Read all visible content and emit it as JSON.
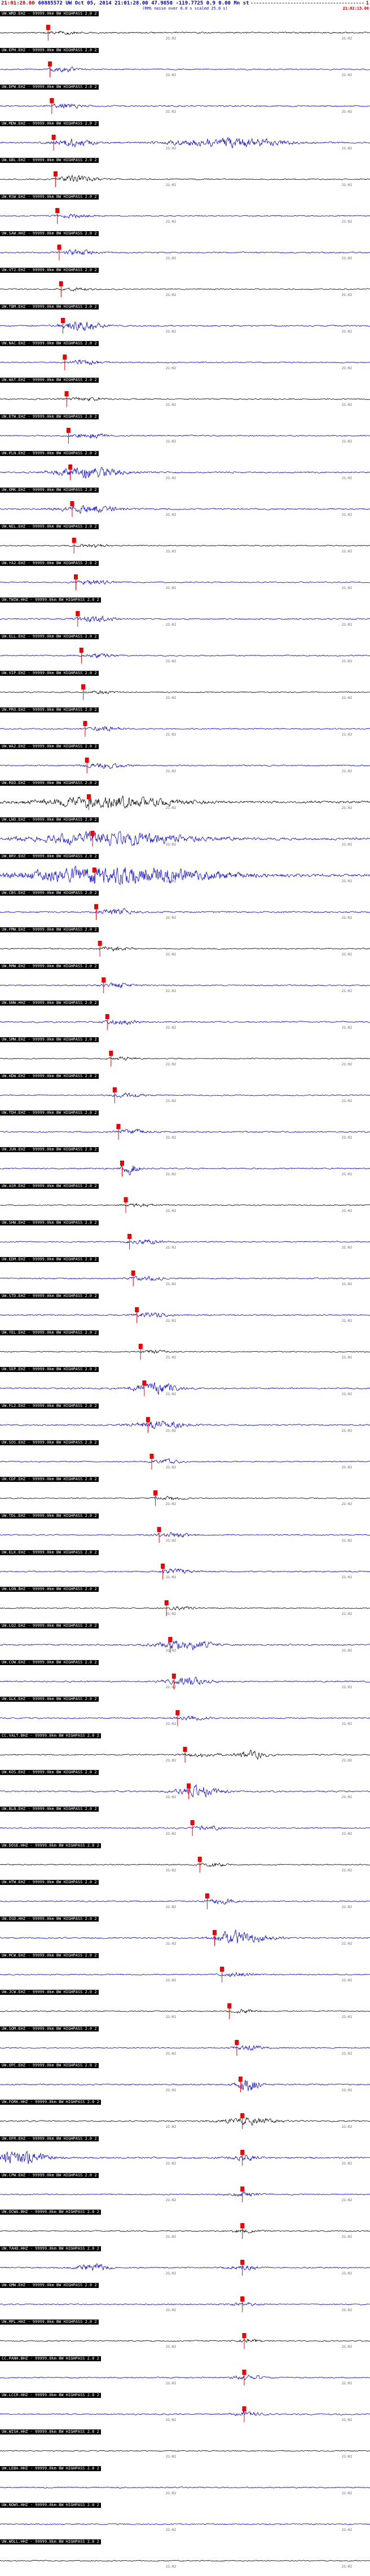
{
  "header": {
    "left_time": "21:01:28.00",
    "title": "60885572 UW Oct 05, 2014 21:01:28.00   47.9850 -119.7725   0.9 0.00 Mn st",
    "page": "1",
    "subtitle": "(RMS noise over 6.0 s scaled 25.0 s)",
    "right_time": "21:02:15.00"
  },
  "row_labels": {
    "center_time": "21:02",
    "right_time": "21:02"
  },
  "colors": {
    "accent_blue": "#0000bb",
    "accent_red": "#cc0000",
    "trace_blue": "#0000dd",
    "trace_black": "#000000",
    "pick_red": "#ee0000",
    "label_bg": "#000000",
    "label_fg": "#ffffff"
  },
  "traces": [
    {
      "l": "UW.WRD.EHZ - 99999.0km BW HIGHPASS 2.0 2",
      "c": "#000000",
      "n": 1.8,
      "p": 0.13,
      "b": [
        [
          0.17,
          0.025,
          4
        ]
      ]
    },
    {
      "l": "UW.EPH.EHZ - 99999.0km BW HIGHPASS 2.0 2",
      "c": "#0000dd",
      "n": 1.5,
      "p": 0.135,
      "b": [
        [
          0.175,
          0.03,
          5
        ]
      ]
    },
    {
      "l": "UW.DPW.EHZ - 99999.0km BW HIGHPASS 2.0 2",
      "c": "#0000dd",
      "n": 1.6,
      "p": 0.14,
      "b": [
        [
          0.18,
          0.03,
          6
        ]
      ]
    },
    {
      "l": "UW.MDW.EHZ - 99999.0km BW HIGHPASS 2.0 2",
      "c": "#0000dd",
      "n": 1.8,
      "p": 0.145,
      "b": [
        [
          0.2,
          0.04,
          9
        ],
        [
          0.62,
          0.1,
          12
        ]
      ]
    },
    {
      "l": "UW.GBL.EHZ - 99999.0km BW HIGHPASS 2.0 2",
      "c": "#000000",
      "n": 1.5,
      "p": 0.15,
      "b": [
        [
          0.21,
          0.035,
          8
        ]
      ]
    },
    {
      "l": "UW.RSW.EHZ - 99999.0km BW HIGHPASS 2.0 2",
      "c": "#0000dd",
      "n": 1.4,
      "p": 0.155,
      "b": [
        [
          0.2,
          0.03,
          5
        ]
      ]
    },
    {
      "l": "UW.SAW.HHZ - 99999.0km BW HIGHPASS 2.0 2",
      "c": "#0000dd",
      "n": 1.6,
      "p": 0.16,
      "b": [
        [
          0.21,
          0.03,
          6
        ]
      ]
    },
    {
      "l": "UW.VT2.EHZ - 99999.0km BW HIGHPASS 2.0 2",
      "c": "#000000",
      "n": 1.4,
      "p": 0.165,
      "b": [
        [
          0.21,
          0.025,
          4
        ]
      ]
    },
    {
      "l": "UW.TBM.EHZ - 99999.0km BW HIGHPASS 2.0 2",
      "c": "#0000dd",
      "n": 1.7,
      "p": 0.17,
      "b": [
        [
          0.22,
          0.035,
          13
        ]
      ]
    },
    {
      "l": "UW.NAC.EHZ - 99999.0km BW HIGHPASS 2.0 2",
      "c": "#0000dd",
      "n": 1.5,
      "p": 0.175,
      "b": [
        [
          0.23,
          0.03,
          6
        ]
      ]
    },
    {
      "l": "UW.WAT.EHZ - 99999.0km BW HIGHPASS 2.0 2",
      "c": "#000000",
      "n": 1.4,
      "p": 0.18,
      "b": [
        [
          0.23,
          0.03,
          5
        ]
      ]
    },
    {
      "l": "UW.ETW.EHZ - 99999.0km BW HIGHPASS 2.0 2",
      "c": "#0000dd",
      "n": 1.6,
      "p": 0.185,
      "b": [
        [
          0.24,
          0.03,
          7
        ]
      ]
    },
    {
      "l": "UW.PLN.EHZ - 99999.0km BW HIGHPASS 2.0 2",
      "c": "#0000dd",
      "n": 1.8,
      "p": 0.19,
      "b": [
        [
          0.24,
          0.06,
          14
        ]
      ]
    },
    {
      "l": "UW.OMK.EHZ - 99999.0km BW HIGHPASS 2.0 2",
      "c": "#0000dd",
      "n": 1.7,
      "p": 0.195,
      "b": [
        [
          0.245,
          0.05,
          10
        ]
      ]
    },
    {
      "l": "UW.NEL.EHZ - 99999.0km BW HIGHPASS 2.0 2",
      "c": "#000000",
      "n": 1.4,
      "p": 0.2,
      "b": [
        [
          0.25,
          0.03,
          4
        ]
      ]
    },
    {
      "l": "UW.YA2.EHZ - 99999.0km BW HIGHPASS 2.0 2",
      "c": "#0000dd",
      "n": 1.5,
      "p": 0.205,
      "b": [
        [
          0.255,
          0.03,
          6
        ]
      ]
    },
    {
      "l": "UW.TWIW.HHZ - 99999.0km BW HIGHPASS 2.0 2",
      "c": "#0000dd",
      "n": 1.6,
      "p": 0.21,
      "b": [
        [
          0.26,
          0.035,
          7
        ]
      ]
    },
    {
      "l": "UW.ELL.EHZ - 99999.0km BW HIGHPASS 2.0 2",
      "c": "#0000dd",
      "n": 1.5,
      "p": 0.22,
      "b": [
        [
          0.27,
          0.03,
          5
        ]
      ]
    },
    {
      "l": "UW.VIP.EHZ - 99999.0km BW HIGHPASS 2.0 2",
      "c": "#000000",
      "n": 1.4,
      "p": 0.225,
      "b": [
        [
          0.27,
          0.025,
          4
        ]
      ]
    },
    {
      "l": "UW.PRO.EHZ - 99999.0km BW HIGHPASS 2.0 2",
      "c": "#0000dd",
      "n": 1.5,
      "p": 0.23,
      "b": [
        [
          0.28,
          0.03,
          6
        ]
      ]
    },
    {
      "l": "UW.WA2.EHZ - 99999.0km BW HIGHPASS 2.0 2",
      "c": "#0000dd",
      "n": 1.6,
      "p": 0.235,
      "b": [
        [
          0.285,
          0.035,
          7
        ]
      ]
    },
    {
      "l": "UW.RED.EHZ - 99999.0km BW HIGHPASS 2.0 2",
      "c": "#000000",
      "n": 2.8,
      "p": 0.24,
      "b": [
        [
          0.3,
          0.12,
          13
        ]
      ]
    },
    {
      "l": "UW.LNO.EHZ - 99999.0km BW HIGHPASS 2.0 2",
      "c": "#0000dd",
      "n": 3.0,
      "p": 0.25,
      "b": [
        [
          0.31,
          0.14,
          15
        ]
      ]
    },
    {
      "l": "UW.BRV.EHZ - 99999.0km BW HIGHPASS 2.0 2",
      "c": "#0000dd",
      "n": 3.0,
      "p": 0.255,
      "b": [
        [
          0.34,
          0.18,
          22
        ]
      ]
    },
    {
      "l": "UW.CBS.EHZ - 99999.0km BW HIGHPASS 2.0 2",
      "c": "#0000dd",
      "n": 1.7,
      "p": 0.26,
      "b": [
        [
          0.31,
          0.035,
          7
        ]
      ]
    },
    {
      "l": "UW.FMW.EHZ - 99999.0km BW HIGHPASS 2.0 2",
      "c": "#000000",
      "n": 1.5,
      "p": 0.27,
      "b": [
        [
          0.31,
          0.03,
          5
        ]
      ]
    },
    {
      "l": "UW.RMW.EHZ - 99999.0km BW HIGHPASS 2.0 2",
      "c": "#0000dd",
      "n": 1.5,
      "p": 0.28,
      "b": [
        [
          0.32,
          0.03,
          6
        ]
      ]
    },
    {
      "l": "UW.GNW.HHZ - 99999.0km BW HIGHPASS 2.0 2",
      "c": "#0000dd",
      "n": 1.6,
      "p": 0.29,
      "b": [
        [
          0.33,
          0.03,
          6
        ]
      ]
    },
    {
      "l": "UW.SMW.EHZ - 99999.0km BW HIGHPASS 2.0 2",
      "c": "#000000",
      "n": 1.4,
      "p": 0.3,
      "b": [
        [
          0.34,
          0.025,
          4
        ]
      ]
    },
    {
      "l": "UW.HDW.EHZ - 99999.0km BW HIGHPASS 2.0 2",
      "c": "#0000dd",
      "n": 1.5,
      "p": 0.31,
      "b": [
        [
          0.35,
          0.03,
          5
        ]
      ]
    },
    {
      "l": "UW.TDH.EHZ - 99999.0km BW HIGHPASS 2.0 2",
      "c": "#0000dd",
      "n": 1.6,
      "p": 0.32,
      "b": [
        [
          0.36,
          0.03,
          6
        ]
      ]
    },
    {
      "l": "UW.JUN.EHZ - 99999.0km BW HIGHPASS 2.0 2",
      "c": "#0000dd",
      "n": 1.7,
      "p": 0.33,
      "b": [
        [
          0.35,
          0.015,
          16
        ]
      ]
    },
    {
      "l": "UW.ASR.EHZ - 99999.0km BW HIGHPASS 2.0 2",
      "c": "#000000",
      "n": 1.4,
      "p": 0.34,
      "b": [
        [
          0.38,
          0.03,
          4
        ]
      ]
    },
    {
      "l": "UW.SHW.EHZ - 99999.0km BW HIGHPASS 2.0 2",
      "c": "#0000dd",
      "n": 1.5,
      "p": 0.35,
      "b": [
        [
          0.39,
          0.03,
          6
        ]
      ]
    },
    {
      "l": "UW.EDM.EHZ - 99999.0km BW HIGHPASS 2.0 2",
      "c": "#0000dd",
      "n": 1.5,
      "p": 0.36,
      "b": [
        [
          0.4,
          0.03,
          5
        ]
      ]
    },
    {
      "l": "UW.STD.EHZ - 99999.0km BW HIGHPASS 2.0 2",
      "c": "#0000dd",
      "n": 1.6,
      "p": 0.37,
      "b": [
        [
          0.41,
          0.03,
          6
        ]
      ]
    },
    {
      "l": "UW.YEL.EHZ - 99999.0km BW HIGHPASS 2.0 2",
      "c": "#000000",
      "n": 1.4,
      "p": 0.38,
      "b": [
        [
          0.42,
          0.025,
          4
        ]
      ]
    },
    {
      "l": "UW.SEP.EHZ - 99999.0km BW HIGHPASS 2.0 2",
      "c": "#0000dd",
      "n": 1.8,
      "p": 0.39,
      "b": [
        [
          0.42,
          0.04,
          15
        ]
      ]
    },
    {
      "l": "UW.FL2.EHZ - 99999.0km BW HIGHPASS 2.0 2",
      "c": "#0000dd",
      "n": 1.7,
      "p": 0.4,
      "b": [
        [
          0.43,
          0.05,
          10
        ]
      ]
    },
    {
      "l": "UW.SOS.EHZ - 99999.0km BW HIGHPASS 2.0 2",
      "c": "#0000dd",
      "n": 1.5,
      "p": 0.41,
      "b": [
        [
          0.45,
          0.03,
          5
        ]
      ]
    },
    {
      "l": "UW.CDF.EHZ - 99999.0km BW HIGHPASS 2.0 2",
      "c": "#000000",
      "n": 1.4,
      "p": 0.42,
      "b": [
        [
          0.46,
          0.03,
          4
        ]
      ]
    },
    {
      "l": "UW.TDL.EHZ - 99999.0km BW HIGHPASS 2.0 2",
      "c": "#0000dd",
      "n": 1.5,
      "p": 0.43,
      "b": [
        [
          0.47,
          0.03,
          6
        ]
      ]
    },
    {
      "l": "UW.ELK.EHZ - 99999.0km BW HIGHPASS 2.0 2",
      "c": "#0000dd",
      "n": 1.6,
      "p": 0.44,
      "b": [
        [
          0.48,
          0.03,
          6
        ]
      ]
    },
    {
      "l": "UW.LON.BHZ - 99999.0km BW HIGHPASS 2.0 2",
      "c": "#000000",
      "n": 1.4,
      "p": 0.45,
      "b": [
        [
          0.49,
          0.025,
          4
        ]
      ]
    },
    {
      "l": "UW.LO2.EHZ - 99999.0km BW HIGHPASS 2.0 2",
      "c": "#0000dd",
      "n": 1.8,
      "p": 0.46,
      "b": [
        [
          0.5,
          0.05,
          12
        ]
      ]
    },
    {
      "l": "UW.COW.EHZ - 99999.0km BW HIGHPASS 2.0 2",
      "c": "#0000dd",
      "n": 1.7,
      "p": 0.47,
      "b": [
        [
          0.51,
          0.04,
          9
        ]
      ]
    },
    {
      "l": "UW.GLK.EHZ - 99999.0km BW HIGHPASS 2.0 2",
      "c": "#0000dd",
      "n": 1.5,
      "p": 0.48,
      "b": [
        [
          0.52,
          0.03,
          5
        ]
      ]
    },
    {
      "l": "CC.VALT.BHZ - 99999.0km BW HIGHPASS 2.0 2",
      "c": "#000000",
      "n": 1.5,
      "p": 0.5,
      "b": [
        [
          0.54,
          0.03,
          5
        ],
        [
          0.68,
          0.03,
          10
        ]
      ]
    },
    {
      "l": "UW.KOS.EHZ - 99999.0km BW HIGHPASS 2.0 2",
      "c": "#0000dd",
      "n": 1.7,
      "p": 0.51,
      "b": [
        [
          0.54,
          0.04,
          13
        ]
      ]
    },
    {
      "l": "UW.BLN.EHZ - 99999.0km BW HIGHPASS 2.0 2",
      "c": "#0000dd",
      "n": 1.5,
      "p": 0.52,
      "b": [
        [
          0.56,
          0.03,
          5
        ]
      ]
    },
    {
      "l": "UW.DOSE.HHZ - 99999.0km BW HIGHPASS 2.0 2",
      "c": "#000000",
      "n": 1.4,
      "p": 0.54,
      "b": [
        [
          0.58,
          0.03,
          4
        ]
      ]
    },
    {
      "l": "UW.HTW.EHZ - 99999.0km BW HIGHPASS 2.0 2",
      "c": "#0000dd",
      "n": 1.5,
      "p": 0.56,
      "b": [
        [
          0.6,
          0.03,
          6
        ]
      ]
    },
    {
      "l": "UW.OSD.HHZ - 99999.0km BW HIGHPASS 2.0 2",
      "c": "#0000dd",
      "n": 1.6,
      "p": 0.58,
      "b": [
        [
          0.62,
          0.03,
          6
        ],
        [
          0.66,
          0.05,
          12
        ]
      ]
    },
    {
      "l": "UW.MCW.EHZ - 99999.0km BW HIGHPASS 2.0 2",
      "c": "#0000dd",
      "n": 1.5,
      "p": 0.6,
      "b": [
        [
          0.64,
          0.03,
          5
        ]
      ]
    },
    {
      "l": "UW.JCW.EHZ - 99999.0km BW HIGHPASS 2.0 2",
      "c": "#000000",
      "n": 1.4,
      "p": 0.62,
      "b": [
        [
          0.66,
          0.025,
          4
        ]
      ]
    },
    {
      "l": "UW.SQM.EHZ - 99999.0km BW HIGHPASS 2.0 2",
      "c": "#0000dd",
      "n": 1.5,
      "p": 0.64,
      "b": [
        [
          0.68,
          0.03,
          6
        ]
      ]
    },
    {
      "l": "UW.OPC.EHZ - 99999.0km BW HIGHPASS 2.0 2",
      "c": "#0000dd",
      "n": 1.7,
      "p": 0.65,
      "b": [
        [
          0.67,
          0.02,
          18
        ]
      ]
    },
    {
      "l": "UW.FORK.HHZ - 99999.0km BW HIGHPASS 2.0 2",
      "c": "#000000",
      "n": 1.6,
      "p": 0.655,
      "b": [
        [
          0.67,
          0.05,
          8
        ]
      ]
    },
    {
      "l": "UW.OFR.EHZ - 99999.0km BW HIGHPASS 2.0 2",
      "c": "#0000dd",
      "n": 2.0,
      "p": 0.655,
      "b": [
        [
          0.05,
          0.05,
          18
        ],
        [
          0.66,
          0.03,
          6
        ]
      ]
    },
    {
      "l": "UW.CPW.EHZ - 99999.0km BW HIGHPASS 2.0 2",
      "c": "#0000dd",
      "n": 1.5,
      "p": 0.655,
      "b": [
        [
          0.66,
          0.03,
          5
        ]
      ]
    },
    {
      "l": "UW.OCWA.BHZ - 99999.0km BW HIGHPASS 2.0 2",
      "c": "#000000",
      "n": 1.4,
      "p": 0.655,
      "b": [
        [
          0.66,
          0.025,
          4
        ]
      ]
    },
    {
      "l": "UW.TAHO.HHZ - 99999.0km BW HIGHPASS 2.0 2",
      "c": "#0000dd",
      "n": 1.6,
      "p": 0.655,
      "b": [
        [
          0.25,
          0.03,
          9
        ],
        [
          0.66,
          0.03,
          5
        ]
      ]
    },
    {
      "l": "UW.GMW.EHZ - 99999.0km BW HIGHPASS 2.0 2",
      "c": "#0000dd",
      "n": 1.5,
      "p": 0.655,
      "b": [
        [
          0.66,
          0.03,
          4
        ]
      ]
    },
    {
      "l": "UW.MPL.HHZ - 99999.0km BW HIGHPASS 2.0 2",
      "c": "#000000",
      "n": 1.4,
      "p": 0.66,
      "b": [
        [
          0.67,
          0.025,
          4
        ]
      ]
    },
    {
      "l": "CC.PANH.BHZ - 99999.0km BW HIGHPASS 2.0 2",
      "c": "#0000dd",
      "n": 1.5,
      "p": 0.66,
      "b": [
        [
          0.67,
          0.03,
          5
        ]
      ]
    },
    {
      "l": "UW.LCCR.HHZ - 99999.0km BW HIGHPASS 2.0 2",
      "c": "#0000dd",
      "n": 1.6,
      "p": 0.66,
      "b": [
        [
          0.67,
          0.03,
          5
        ]
      ]
    },
    {
      "l": "UW.WISH.HHZ - 99999.0km BW HIGHPASS 2.0 2",
      "c": "#000000",
      "n": 1.4,
      "p": null,
      "b": []
    },
    {
      "l": "UW.LEBA.HHZ - 99999.0km BW HIGHPASS 2.0 2",
      "c": "#0000dd",
      "n": 1.5,
      "p": null,
      "b": []
    },
    {
      "l": "UW.NOWS.HHZ - 99999.0km BW HIGHPASS 2.0 2",
      "c": "#0000dd",
      "n": 1.5,
      "p": null,
      "b": []
    },
    {
      "l": "UW.WOLL.HHZ - 99999.0km BW HIGHPASS 2.0 2",
      "c": "#000000",
      "n": 1.4,
      "p": null,
      "b": []
    }
  ]
}
